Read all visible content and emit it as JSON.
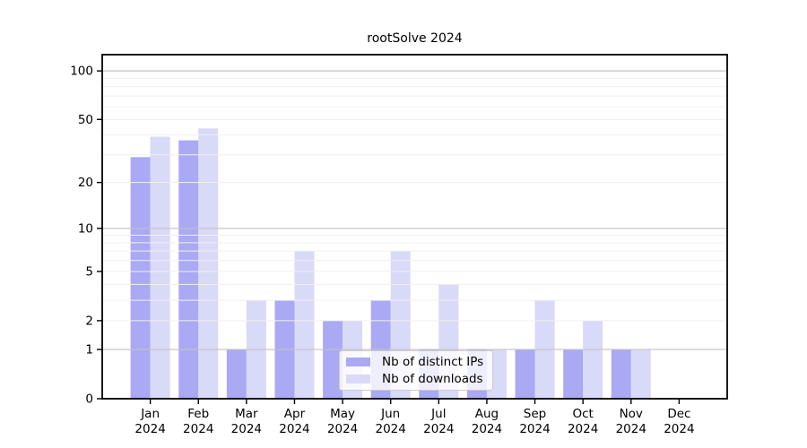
{
  "chart_data": {
    "type": "bar",
    "title": "rootSolve 2024",
    "categories": [
      "Jan",
      "Feb",
      "Mar",
      "Apr",
      "May",
      "Jun",
      "Jul",
      "Aug",
      "Sep",
      "Oct",
      "Nov",
      "Dec"
    ],
    "x_year_label": "2024",
    "series": [
      {
        "name": "Nb of distinct IPs",
        "color": "#a9a9f4",
        "values": [
          29,
          37,
          1,
          3,
          2,
          3,
          1,
          1,
          1,
          1,
          1,
          0
        ]
      },
      {
        "name": "Nb of downloads",
        "color": "#d9d9f8",
        "values": [
          39,
          44,
          3,
          7,
          2,
          7,
          4,
          1,
          3,
          2,
          1,
          0
        ]
      }
    ],
    "yscale": "log10(value+1)",
    "ylim": [
      0,
      126
    ],
    "yticks": [
      0,
      1,
      2,
      5,
      10,
      20,
      50,
      100
    ],
    "major_gridlines": [
      1,
      10,
      100
    ],
    "minor_gridlines": [
      2,
      3,
      4,
      5,
      6,
      7,
      8,
      9,
      20,
      30,
      40,
      50,
      60,
      70,
      80,
      90
    ],
    "grid": true,
    "legend_position": "lower-center-inside",
    "colors": {
      "axis": "#000000",
      "major_grid": "#c2c2c2",
      "minor_grid": "#f0f0f0",
      "background": "#ffffff",
      "legend_border": "#cccccc",
      "text": "#000000"
    }
  }
}
